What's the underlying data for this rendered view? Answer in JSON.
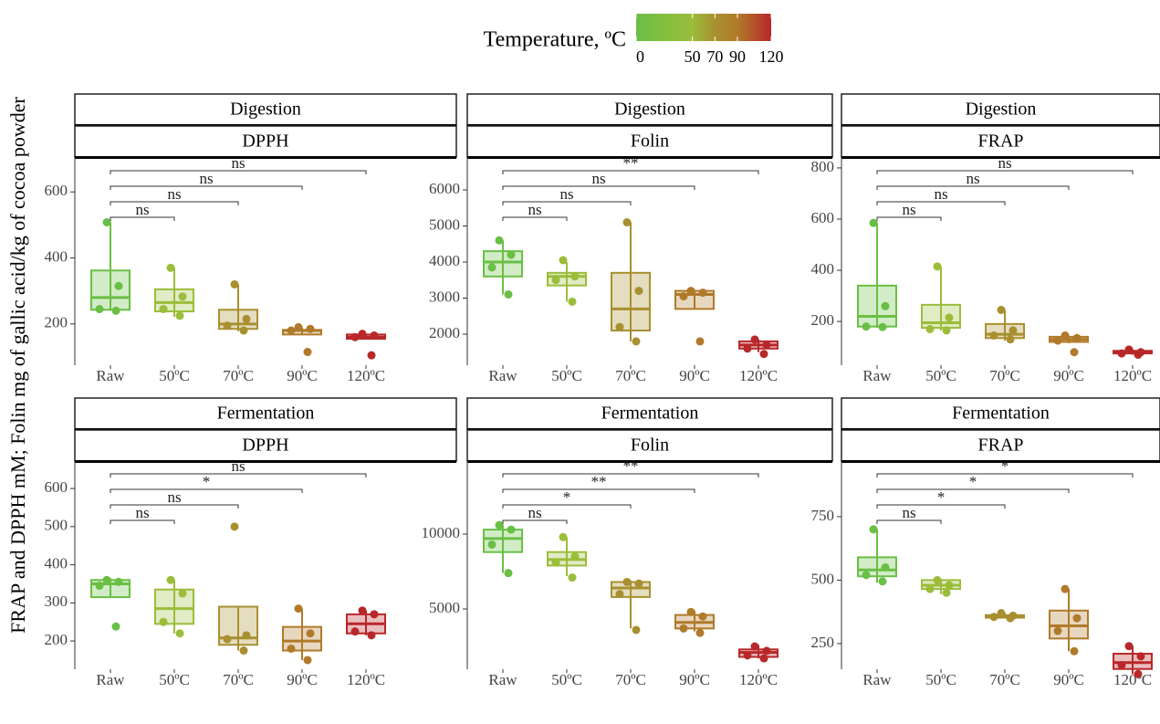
{
  "ylabel": "FRAP and DPPH mM; Folin mg of gallic acid/kg of cocoa powder",
  "legend": {
    "title": "Temperature, ºC",
    "lim": [
      0,
      120
    ],
    "ticks": [
      0,
      50,
      70,
      90,
      120
    ],
    "colors": [
      "#6abf45",
      "#9bbd3a",
      "#a89030",
      "#b07a2a",
      "#b8282a"
    ]
  },
  "chart_data": [
    {
      "type": "box",
      "facets": [
        "Digestion",
        "DPPH"
      ],
      "categories": [
        "Raw",
        "50ºC",
        "70ºC",
        "90ºC",
        "120ºC"
      ],
      "ylim": [
        75,
        703
      ],
      "yticks": [
        200,
        400,
        600
      ],
      "comparisons": [
        null,
        "ns",
        "ns",
        "ns",
        "ns"
      ],
      "boxes": [
        {
          "min": 240,
          "q1": 243,
          "median": 280,
          "q3": 362,
          "max": 508
        },
        {
          "min": 222,
          "q1": 238,
          "median": 265,
          "q3": 305,
          "max": 370
        },
        {
          "min": 178,
          "q1": 185,
          "median": 200,
          "q3": 243,
          "max": 320
        },
        {
          "min": 168,
          "q1": 168,
          "median": 180,
          "q3": 182,
          "max": 190
        },
        {
          "min": 155,
          "q1": 155,
          "median": 160,
          "q3": 168,
          "max": 170
        }
      ],
      "points": [
        [
          508,
          315,
          245,
          240
        ],
        [
          370,
          283,
          245,
          225
        ],
        [
          320,
          215,
          195,
          180
        ],
        [
          190,
          185,
          180,
          115
        ],
        [
          170,
          165,
          160,
          105
        ]
      ]
    },
    {
      "type": "box",
      "facets": [
        "Digestion",
        "Folin"
      ],
      "categories": [
        "Raw",
        "50ºC",
        "70ºC",
        "90ºC",
        "120ºC"
      ],
      "ylim": [
        1139,
        6886
      ],
      "yticks": [
        2000,
        3000,
        4000,
        5000,
        6000
      ],
      "comparisons": [
        null,
        "ns",
        "ns",
        "ns",
        "**"
      ],
      "boxes": [
        {
          "min": 3100,
          "q1": 3600,
          "median": 4000,
          "q3": 4300,
          "max": 4600
        },
        {
          "min": 2900,
          "q1": 3350,
          "median": 3600,
          "q3": 3700,
          "max": 4000
        },
        {
          "min": 1800,
          "q1": 2100,
          "median": 2700,
          "q3": 3700,
          "max": 5100
        },
        {
          "min": 2700,
          "q1": 2700,
          "median": 3100,
          "q3": 3200,
          "max": 3200
        },
        {
          "min": 1500,
          "q1": 1600,
          "median": 1700,
          "q3": 1800,
          "max": 1850
        }
      ],
      "points": [
        [
          4600,
          4200,
          3850,
          3100
        ],
        [
          4050,
          3600,
          3500,
          2900
        ],
        [
          5100,
          3200,
          2200,
          1800
        ],
        [
          3200,
          3150,
          3050,
          1800
        ],
        [
          1850,
          1700,
          1600,
          1450
        ]
      ]
    },
    {
      "type": "box",
      "facets": [
        "Digestion",
        "FRAP"
      ],
      "categories": [
        "Raw",
        "50ºC",
        "70ºC",
        "90ºC",
        "120ºC"
      ],
      "ylim": [
        29,
        839
      ],
      "yticks": [
        200,
        400,
        600,
        800
      ],
      "comparisons": [
        null,
        "ns",
        "ns",
        "ns",
        "ns"
      ],
      "boxes": [
        {
          "min": 175,
          "q1": 180,
          "median": 220,
          "q3": 340,
          "max": 585
        },
        {
          "min": 165,
          "q1": 175,
          "median": 195,
          "q3": 265,
          "max": 415
        },
        {
          "min": 125,
          "q1": 135,
          "median": 150,
          "q3": 190,
          "max": 245
        },
        {
          "min": 115,
          "q1": 120,
          "median": 130,
          "q3": 140,
          "max": 145
        },
        {
          "min": 70,
          "q1": 75,
          "median": 80,
          "q3": 85,
          "max": 90
        }
      ],
      "points": [
        [
          585,
          260,
          180,
          178
        ],
        [
          415,
          215,
          170,
          165
        ],
        [
          245,
          165,
          145,
          130
        ],
        [
          145,
          135,
          125,
          80
        ],
        [
          90,
          80,
          75,
          70
        ]
      ]
    },
    {
      "type": "box",
      "facets": [
        "Fermentation",
        "DPPH"
      ],
      "categories": [
        "Raw",
        "50ºC",
        "70ºC",
        "90ºC",
        "120ºC"
      ],
      "ylim": [
        126,
        672
      ],
      "yticks": [
        200,
        300,
        400,
        500,
        600
      ],
      "comparisons": [
        null,
        "ns",
        "ns",
        "*",
        "ns"
      ],
      "boxes": [
        {
          "min": 315,
          "q1": 315,
          "median": 350,
          "q3": 360,
          "max": 365
        },
        {
          "min": 220,
          "q1": 245,
          "median": 285,
          "q3": 335,
          "max": 360
        },
        {
          "min": 175,
          "q1": 190,
          "median": 208,
          "q3": 290,
          "max": 290
        },
        {
          "min": 150,
          "q1": 175,
          "median": 200,
          "q3": 237,
          "max": 285
        },
        {
          "min": 215,
          "q1": 220,
          "median": 245,
          "q3": 270,
          "max": 280
        }
      ],
      "points": [
        [
          360,
          355,
          345,
          238
        ],
        [
          360,
          325,
          250,
          220
        ],
        [
          500,
          215,
          205,
          175
        ],
        [
          285,
          220,
          180,
          150
        ],
        [
          280,
          270,
          225,
          215
        ]
      ]
    },
    {
      "type": "box",
      "facets": [
        "Fermentation",
        "Folin"
      ],
      "categories": [
        "Raw",
        "50ºC",
        "70ºC",
        "90ºC",
        "120ºC"
      ],
      "ylim": [
        976,
        14878
      ],
      "yticks": [
        5000,
        10000
      ],
      "comparisons": [
        null,
        "ns",
        "*",
        "**",
        "**"
      ],
      "boxes": [
        {
          "min": 7400,
          "q1": 8800,
          "median": 9700,
          "q3": 10300,
          "max": 10600
        },
        {
          "min": 7200,
          "q1": 7900,
          "median": 8300,
          "q3": 8800,
          "max": 9800
        },
        {
          "min": 3700,
          "q1": 5800,
          "median": 6400,
          "q3": 6800,
          "max": 6900
        },
        {
          "min": 3500,
          "q1": 3700,
          "median": 4100,
          "q3": 4600,
          "max": 4900
        },
        {
          "min": 1700,
          "q1": 1800,
          "median": 2100,
          "q3": 2300,
          "max": 2600
        }
      ],
      "points": [
        [
          10600,
          10300,
          9300,
          7400
        ],
        [
          9800,
          8500,
          8100,
          7100
        ],
        [
          6800,
          6700,
          6000,
          3600
        ],
        [
          4800,
          4500,
          3700,
          3400
        ],
        [
          2500,
          2200,
          1900,
          1700
        ]
      ]
    },
    {
      "type": "box",
      "facets": [
        "Fermentation",
        "FRAP"
      ],
      "categories": [
        "Raw",
        "50ºC",
        "70ºC",
        "90ºC",
        "120ºC"
      ],
      "ylim": [
        149,
        969
      ],
      "yticks": [
        250,
        500,
        750
      ],
      "comparisons": [
        null,
        "ns",
        "*",
        "*",
        "*"
      ],
      "boxes": [
        {
          "min": 490,
          "q1": 515,
          "median": 540,
          "q3": 590,
          "max": 700
        },
        {
          "min": 445,
          "q1": 465,
          "median": 480,
          "q3": 500,
          "max": 505
        },
        {
          "min": 350,
          "q1": 352,
          "median": 358,
          "q3": 362,
          "max": 370
        },
        {
          "min": 220,
          "q1": 270,
          "median": 320,
          "q3": 380,
          "max": 465
        },
        {
          "min": 130,
          "q1": 150,
          "median": 175,
          "q3": 210,
          "max": 240
        }
      ],
      "points": [
        [
          700,
          550,
          520,
          495
        ],
        [
          500,
          480,
          465,
          450
        ],
        [
          370,
          360,
          355,
          350
        ],
        [
          465,
          350,
          300,
          220
        ],
        [
          240,
          200,
          165,
          130
        ]
      ]
    }
  ]
}
